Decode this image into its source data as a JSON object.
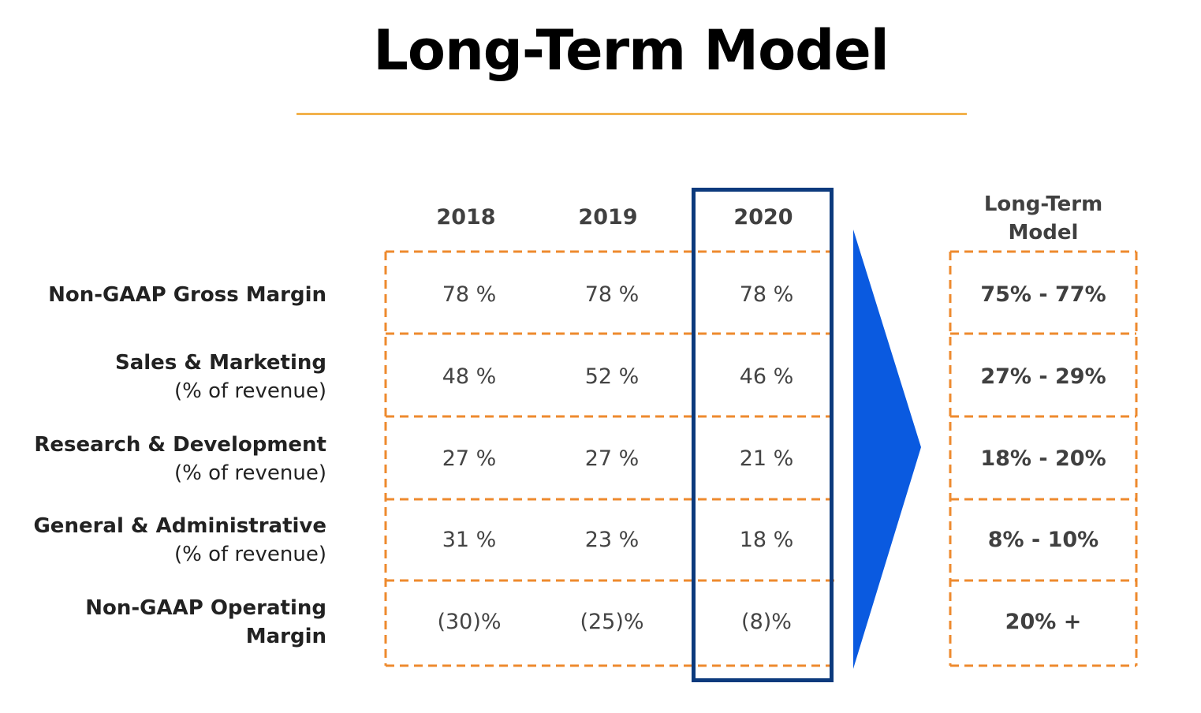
{
  "title": "Long-Term Model",
  "columns": [
    "2018",
    "2019",
    "2020"
  ],
  "long_term_header": [
    "Long-Term",
    "Model"
  ],
  "rows": [
    {
      "label": "Non-GAAP Gross Margin",
      "sublabel": "",
      "values": [
        "78 %",
        "78 %",
        "78 %"
      ],
      "long_term": "75% - 77%"
    },
    {
      "label": "Sales & Marketing",
      "sublabel": "(% of revenue)",
      "values": [
        "48 %",
        "52 %",
        "46 %"
      ],
      "long_term": "27% - 29%"
    },
    {
      "label": "Research & Development",
      "sublabel": "(% of revenue)",
      "values": [
        "27 %",
        "27 %",
        "21 %"
      ],
      "long_term": "18% - 20%"
    },
    {
      "label": "General & Administrative",
      "sublabel": "(% of revenue)",
      "values": [
        "31 %",
        "23 %",
        "18 %"
      ],
      "long_term": "8% - 10%"
    },
    {
      "label": "Non-GAAP Operating",
      "sublabel": "Margin",
      "values": [
        "(30)%",
        "(25)%",
        "(8)%"
      ],
      "long_term": "20% +"
    }
  ],
  "colors": {
    "dashed_border": "#ee8a2e",
    "highlight_border": "#0c3a7d",
    "arrow": "#0a5ae0",
    "title_rule": "#f2b24c"
  },
  "arrow_icon": "right-triangle-arrow-icon"
}
